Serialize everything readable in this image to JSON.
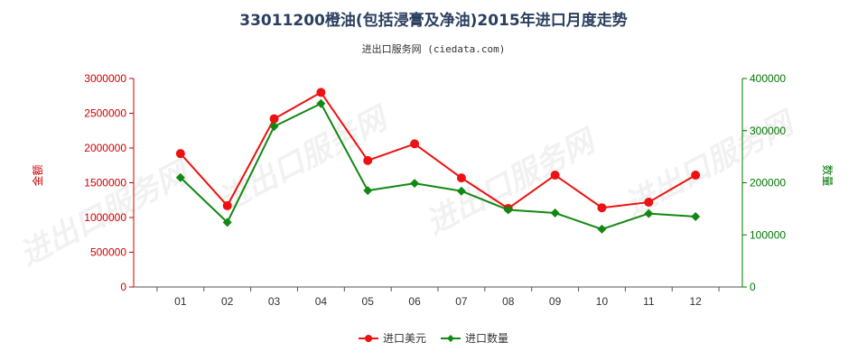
{
  "watermark": "进出口服务网",
  "chart_data": {
    "type": "line",
    "title": "33011200橙油(包括浸膏及净油)2015年进口月度走势",
    "subtitle": "进出口服务网 (ciedata.com)",
    "categories": [
      "01",
      "02",
      "03",
      "04",
      "05",
      "06",
      "07",
      "08",
      "09",
      "10",
      "11",
      "12"
    ],
    "y_left": {
      "label": "金额",
      "ylim": [
        0,
        3000000
      ],
      "ticks": [
        0,
        500000,
        1000000,
        1500000,
        2000000,
        2500000,
        3000000
      ],
      "color": "#cc0000"
    },
    "y_right": {
      "label": "数量",
      "ylim": [
        0,
        400000
      ],
      "ticks": [
        0,
        100000,
        200000,
        300000,
        400000
      ],
      "color": "#007700"
    },
    "series": [
      {
        "name": "进口美元",
        "axis": "left",
        "color": "#ee1111",
        "marker": "circle",
        "values": [
          1920000,
          1170000,
          2420000,
          2800000,
          1820000,
          2060000,
          1570000,
          1130000,
          1610000,
          1140000,
          1220000,
          1610000
        ]
      },
      {
        "name": "进口数量",
        "axis": "right",
        "color": "#118811",
        "marker": "diamond",
        "values": [
          210000,
          124000,
          308000,
          352000,
          185000,
          199000,
          184000,
          148000,
          142000,
          111000,
          141000,
          135000
        ]
      }
    ],
    "grid": false,
    "legend_position": "bottom-center"
  }
}
